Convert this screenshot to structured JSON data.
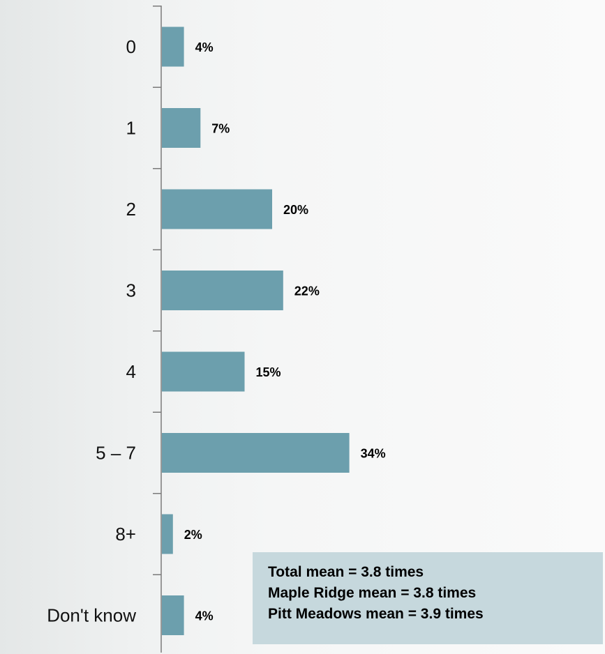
{
  "chart_data": {
    "type": "bar",
    "orientation": "horizontal",
    "categories": [
      "0",
      "1",
      "2",
      "3",
      "4",
      "5 – 7",
      "8+",
      "Don't know"
    ],
    "values": [
      4,
      7,
      20,
      22,
      15,
      34,
      2,
      4
    ],
    "value_labels": [
      "4%",
      "7%",
      "20%",
      "22%",
      "15%",
      "34%",
      "2%",
      "4%"
    ],
    "unit": "%",
    "bar_color": "#6c9fad",
    "grid": false,
    "legend": "none"
  },
  "means": [
    "Total mean = 3.8 times",
    "Maple Ridge mean = 3.8 times",
    "Pitt Meadows mean = 3.9 times"
  ]
}
